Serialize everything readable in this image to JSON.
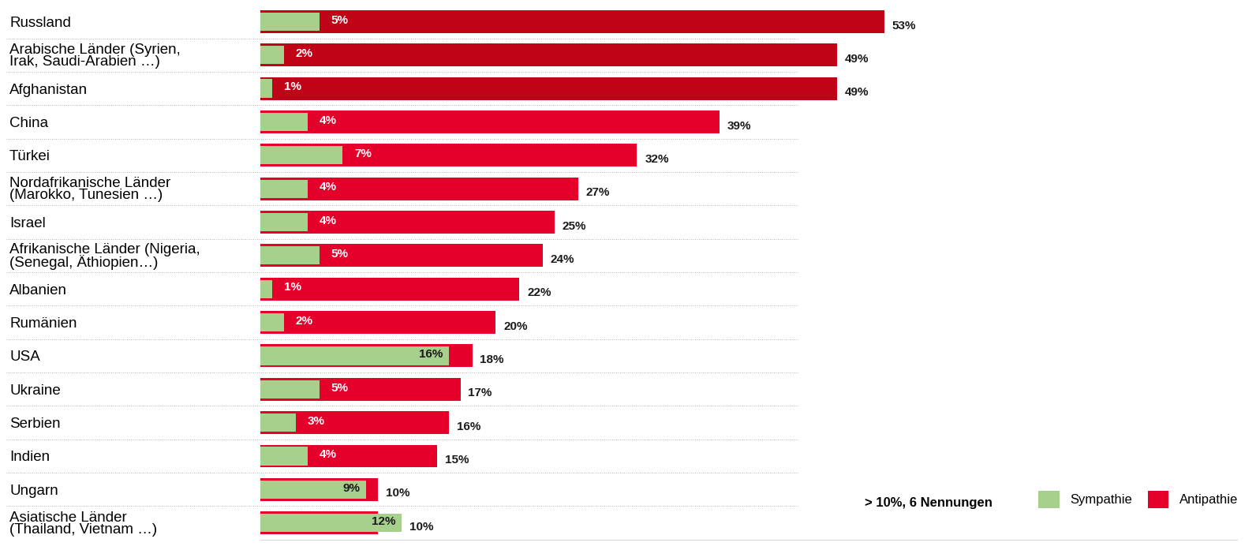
{
  "chart_data": {
    "type": "bar",
    "orientation": "horizontal",
    "stacked": false,
    "data_labels": true,
    "tick_labels": "y",
    "grid": false,
    "legend": "lower right",
    "note": "> 10%, 6 Nennungen",
    "categories": [
      "Russland",
      "Arabische Länder (Syrien,\nIrak, Saudi-Arabien …)",
      "Afghanistan",
      "China",
      "Türkei",
      "Nordafrikanische Länder\n(Marokko, Tunesien …)",
      "Israel",
      "Afrikanische Länder (Nigeria,\n(Senegal, Äthiopien…)",
      "Albanien",
      "Rumänien",
      "USA",
      "Ukraine",
      "Serbien",
      "Indien",
      "Ungarn",
      "Asiatische Länder\n(Thailand, Vietnam …)"
    ],
    "xlim": [
      0,
      83
    ],
    "series": [
      {
        "name": "Antipathie",
        "color": "#e4002b",
        "colors": [
          "#c00418",
          "#c00418",
          "#c00418",
          "#e4002b",
          "#e4002b",
          "#e4002b",
          "#e4002b",
          "#e4002b",
          "#e4002b",
          "#e4002b",
          "#e4002b",
          "#e4002b",
          "#e4002b",
          "#e4002b",
          "#e4002b",
          "#e4002b"
        ],
        "values": [
          53,
          49,
          49,
          39,
          32,
          27,
          25,
          24,
          22,
          20,
          18,
          17,
          16,
          15,
          10,
          10
        ],
        "value_labels": [
          "53%",
          "49%",
          "49%",
          "39%",
          "32%",
          "27%",
          "25%",
          "24%",
          "22%",
          "20%",
          "18%",
          "17%",
          "16%",
          "15%",
          "10%",
          "10%"
        ]
      },
      {
        "name": "Sympathie",
        "color": "#a8d08d",
        "values": [
          5,
          2,
          1,
          4,
          7,
          4,
          4,
          5,
          1,
          2,
          16,
          5,
          3,
          4,
          9,
          12
        ],
        "value_labels": [
          "5%",
          "2%",
          "1%",
          "4%",
          "7%",
          "4%",
          "4%",
          "5%",
          "1%",
          "2%",
          "16%",
          "5%",
          "3%",
          "4%",
          "9%",
          "12%"
        ]
      }
    ]
  }
}
